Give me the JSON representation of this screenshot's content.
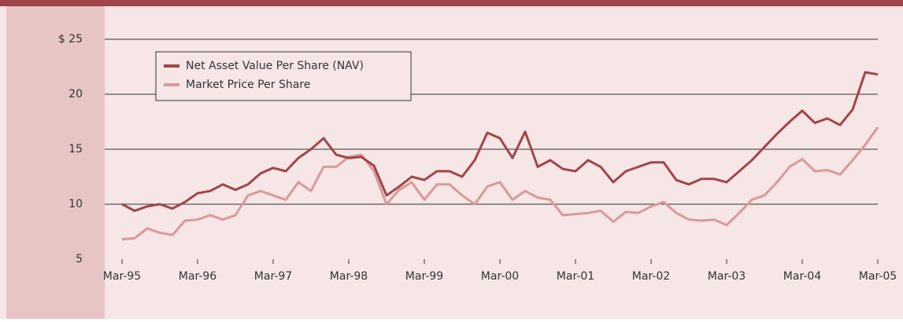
{
  "chart_data": {
    "type": "line",
    "categories": [
      "Mar-95",
      null,
      null,
      null,
      null,
      null,
      "Mar-96",
      null,
      null,
      null,
      null,
      null,
      "Mar-97",
      null,
      null,
      null,
      null,
      null,
      "Mar-98",
      null,
      null,
      null,
      null,
      null,
      "Mar-99",
      null,
      null,
      null,
      null,
      null,
      "Mar-00",
      null,
      null,
      null,
      null,
      null,
      "Mar-01",
      null,
      null,
      null,
      null,
      null,
      "Mar-02",
      null,
      null,
      null,
      null,
      null,
      "Mar-03",
      null,
      null,
      null,
      null,
      null,
      "Mar-04",
      null,
      null,
      null,
      null,
      null,
      "Mar-05"
    ],
    "series": [
      {
        "name": "Net Asset Value Per Share (NAV)",
        "color": "#a0454a",
        "values": [
          10,
          9.4,
          9.8,
          10,
          9.6,
          10.2,
          11,
          11.2,
          11.8,
          11.3,
          11.8,
          12.8,
          13.3,
          13,
          14.2,
          15,
          16,
          14.5,
          14.2,
          14.3,
          13.5,
          10.8,
          11.6,
          12.5,
          12.2,
          13,
          13,
          12.5,
          14,
          16.5,
          16,
          14.2,
          16.6,
          13.4,
          14,
          13.2,
          13,
          14,
          13.4,
          12,
          13,
          13.4,
          13.8,
          13.8,
          12.2,
          11.8,
          12.3,
          12.3,
          12,
          13,
          14,
          15.2,
          16.4,
          17.5,
          18.5,
          17.4,
          17.8,
          17.2,
          18.6,
          22,
          21.8
        ]
      },
      {
        "name": "Market Price Per Share",
        "color": "#d9999b",
        "values": [
          6.8,
          6.9,
          7.8,
          7.4,
          7.2,
          8.5,
          8.6,
          9,
          8.6,
          9,
          10.8,
          11.2,
          10.8,
          10.4,
          12,
          11.2,
          13.4,
          13.4,
          14.3,
          14.5,
          13,
          10,
          11.3,
          12,
          10.4,
          11.8,
          11.8,
          10.8,
          10,
          11.6,
          12,
          10.4,
          11.2,
          10.6,
          10.4,
          9,
          9.1,
          9.2,
          9.4,
          8.4,
          9.3,
          9.2,
          9.8,
          10.2,
          9.2,
          8.6,
          8.5,
          8.6,
          8.1,
          9.2,
          10.4,
          10.8,
          12,
          13.4,
          14.1,
          13,
          13.1,
          12.7,
          14,
          15.4,
          17
        ]
      }
    ],
    "ylim": [
      5,
      25
    ],
    "yticks": [
      5,
      10,
      15,
      20,
      {
        "value": 25,
        "label": "$ 25"
      }
    ],
    "grid": true,
    "legend": "top-left"
  }
}
